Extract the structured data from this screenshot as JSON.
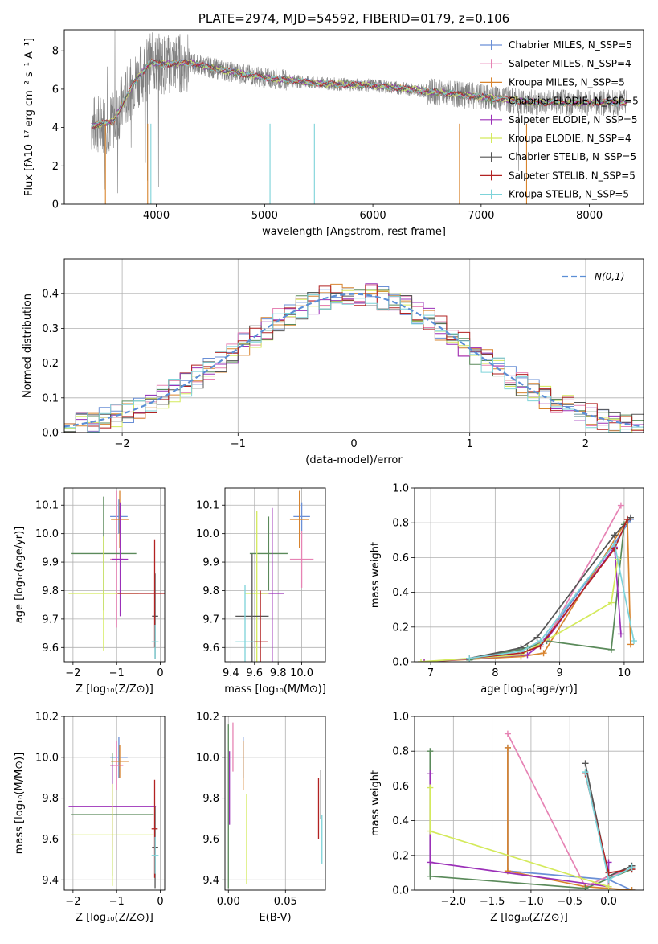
{
  "chart_data": [
    {
      "id": "spectrum",
      "type": "line",
      "title": "PLATE=2974, MJD=54592, FIBERID=0179, z=0.106",
      "xlabel": "wavelength [Angstrom, rest frame]",
      "ylabel": "Flux [fλ10⁻¹⁷ erg cm⁻² s⁻¹ A⁻¹]",
      "xlim": [
        3150,
        8500
      ],
      "ylim": [
        0,
        9.1
      ],
      "xticks": [
        4000,
        5000,
        6000,
        7000,
        8000
      ],
      "yticks": [
        0,
        2,
        4,
        6,
        8
      ],
      "legend_position": "top-right",
      "legend": [
        {
          "label": "Chabrier MILES, N_SSP=5",
          "color": "#6a8fd6"
        },
        {
          "label": "Salpeter MILES, N_SSP=4",
          "color": "#e683b4"
        },
        {
          "label": "Kroupa MILES, N_SSP=5",
          "color": "#d8842e"
        },
        {
          "label": "Chabrier ELODIE, N_SSP=5",
          "color": "#5a8a5a"
        },
        {
          "label": "Salpeter ELODIE, N_SSP=5",
          "color": "#9b30b8"
        },
        {
          "label": "Kroupa ELODIE, N_SSP=4",
          "color": "#d4ea5c"
        },
        {
          "label": "Chabrier STELIB, N_SSP=5",
          "color": "#555555"
        },
        {
          "label": "Salpeter STELIB, N_SSP=5",
          "color": "#b22222"
        },
        {
          "label": "Kroupa STELIB, N_SSP=5",
          "color": "#7dd3d9"
        }
      ],
      "data_trend": [
        {
          "x": 3400,
          "y": 4.1
        },
        {
          "x": 3600,
          "y": 4.3
        },
        {
          "x": 3800,
          "y": 6.4
        },
        {
          "x": 3950,
          "y": 7.4
        },
        {
          "x": 4100,
          "y": 7.3
        },
        {
          "x": 4300,
          "y": 7.4
        },
        {
          "x": 4600,
          "y": 7.0
        },
        {
          "x": 5000,
          "y": 6.6
        },
        {
          "x": 5500,
          "y": 6.3
        },
        {
          "x": 6000,
          "y": 6.2
        },
        {
          "x": 6500,
          "y": 5.9
        },
        {
          "x": 7000,
          "y": 5.6
        },
        {
          "x": 7500,
          "y": 5.3
        },
        {
          "x": 8000,
          "y": 5.3
        },
        {
          "x": 8350,
          "y": 5.3
        }
      ]
    },
    {
      "id": "residual-hist",
      "type": "line",
      "xlabel": "(data-model)/error",
      "ylabel": "Normed distribution",
      "xlim": [
        -2.5,
        2.5
      ],
      "ylim": [
        0,
        0.5
      ],
      "xticks": [
        -2,
        -1,
        0,
        1,
        2
      ],
      "xtick_labels": [
        "−2",
        "−1",
        "0",
        "1",
        "2"
      ],
      "yticks": [
        0.0,
        0.1,
        0.2,
        0.3,
        0.4
      ],
      "ytick_labels": [
        "0.0",
        "0.1",
        "0.2",
        "0.3",
        "0.4"
      ],
      "legend_position": "top-right",
      "legend": [
        {
          "label": "N(0,1)",
          "color": "#5b8ed6",
          "style": "dashed"
        }
      ],
      "grid": true
    },
    {
      "id": "age-vs-Z",
      "type": "scatter",
      "xlabel": "Z [log₁₀(Z/Z⊙)]",
      "ylabel": "age  [log₁₀(age/yr)]",
      "xlim": [
        -2.2,
        0.1
      ],
      "ylim": [
        9.55,
        10.16
      ],
      "xticks": [
        -2,
        -1,
        0
      ],
      "xtick_labels": [
        "−2",
        "−1",
        "0"
      ],
      "yticks": [
        9.6,
        9.7,
        9.8,
        9.9,
        10.0,
        10.1
      ],
      "ytick_labels": [
        "9.6",
        "9.7",
        "9.8",
        "9.9",
        "10.0",
        "10.1"
      ],
      "grid": true,
      "points": [
        {
          "model": "Chabrier MILES",
          "x": -0.95,
          "y": 10.06,
          "xerr": 0.2,
          "yerr": 0.06
        },
        {
          "model": "Salpeter MILES",
          "x": -1.0,
          "y": 9.91,
          "xerr": 0.15,
          "yerr": 0.24
        },
        {
          "model": "Kroupa MILES",
          "x": -0.93,
          "y": 10.05,
          "xerr": 0.2,
          "yerr": 0.1
        },
        {
          "model": "Chabrier ELODIE",
          "x": -1.3,
          "y": 9.93,
          "xerr": 0.75,
          "yerr": 0.2
        },
        {
          "model": "Salpeter ELODIE",
          "x": -0.92,
          "y": 9.91,
          "xerr": 0.18,
          "yerr": 0.2
        },
        {
          "model": "Kroupa ELODIE",
          "x": -1.3,
          "y": 9.79,
          "xerr": 0.8,
          "yerr": 0.2
        },
        {
          "model": "Chabrier STELIB",
          "x": -0.12,
          "y": 9.71,
          "xerr": 0.07,
          "yerr": 0.15
        },
        {
          "model": "Salpeter STELIB",
          "x": -0.13,
          "y": 9.79,
          "xerr": 0.85,
          "yerr": 0.19
        },
        {
          "model": "Kroupa STELIB",
          "x": -0.12,
          "y": 9.62,
          "xerr": 0.08,
          "yerr": 0.06
        }
      ]
    },
    {
      "id": "age-vs-mass",
      "type": "scatter",
      "xlabel": "mass [log₁₀(M/M⊙)]",
      "xlim": [
        9.35,
        10.2
      ],
      "ylim": [
        9.55,
        10.16
      ],
      "xticks": [
        9.4,
        9.6,
        9.8,
        10.0
      ],
      "xtick_labels": [
        "9.4",
        "9.6",
        "9.8",
        "10.0"
      ],
      "yticks": [
        9.6,
        9.7,
        9.8,
        9.9,
        10.0,
        10.1
      ],
      "ytick_labels": [
        "9.6",
        "9.7",
        "9.8",
        "9.9",
        "10.0",
        "10.1"
      ],
      "grid": true,
      "points": [
        {
          "model": "Chabrier MILES",
          "x": 10.0,
          "y": 10.06,
          "xerr": 0.07,
          "yerr": 0.05
        },
        {
          "model": "Salpeter MILES",
          "x": 10.0,
          "y": 9.91,
          "xerr": 0.1,
          "yerr": 0.1
        },
        {
          "model": "Kroupa MILES",
          "x": 9.98,
          "y": 10.05,
          "xerr": 0.08,
          "yerr": 0.1
        },
        {
          "model": "Chabrier ELODIE",
          "x": 9.72,
          "y": 9.93,
          "xerr": 0.16,
          "yerr": 0.13
        },
        {
          "model": "Salpeter ELODIE",
          "x": 9.75,
          "y": 9.79,
          "xerr": 0.1,
          "yerr": 0.3
        },
        {
          "model": "Kroupa ELODIE",
          "x": 9.62,
          "y": 9.79,
          "xerr": 0.1,
          "yerr": 0.29
        },
        {
          "model": "Chabrier STELIB",
          "x": 9.58,
          "y": 9.71,
          "xerr": 0.14,
          "yerr": 0.22
        },
        {
          "model": "Salpeter STELIB",
          "x": 9.65,
          "y": 9.62,
          "xerr": 0.06,
          "yerr": 0.18
        },
        {
          "model": "Kroupa STELIB",
          "x": 9.52,
          "y": 9.62,
          "xerr": 0.08,
          "yerr": 0.2
        }
      ]
    },
    {
      "id": "massweight-vs-age",
      "type": "line",
      "xlabel": "age  [log₁₀(age/yr)]",
      "ylabel": "mass weight",
      "xlim": [
        6.75,
        10.3
      ],
      "ylim": [
        0,
        1.0
      ],
      "xticks": [
        7,
        8,
        9,
        10
      ],
      "xtick_labels": [
        "7",
        "8",
        "9",
        "10"
      ],
      "yticks": [
        0.0,
        0.2,
        0.4,
        0.6,
        0.8,
        1.0
      ],
      "ytick_labels": [
        "0.0",
        "0.2",
        "0.4",
        "0.6",
        "0.8",
        "1.0"
      ],
      "grid": true,
      "series": [
        {
          "model": "Chabrier MILES",
          "x": [
            7.6,
            8.4,
            8.7,
            9.85,
            10.1
          ],
          "y": [
            0.02,
            0.07,
            0.1,
            0.68,
            0.82
          ]
        },
        {
          "model": "Salpeter MILES",
          "x": [
            7.6,
            8.5,
            8.8,
            9.95
          ],
          "y": [
            0.01,
            0.08,
            0.13,
            0.9
          ]
        },
        {
          "model": "Kroupa MILES",
          "x": [
            6.9,
            8.4,
            8.75,
            10.05,
            10.1
          ],
          "y": [
            0.0,
            0.03,
            0.05,
            0.82,
            0.1
          ]
        },
        {
          "model": "Chabrier ELODIE",
          "x": [
            7.6,
            8.5,
            8.8,
            9.8,
            10.0
          ],
          "y": [
            0.01,
            0.08,
            0.12,
            0.07,
            0.79
          ]
        },
        {
          "model": "Salpeter ELODIE",
          "x": [
            6.9,
            8.5,
            8.8,
            9.85,
            9.95
          ],
          "y": [
            0.0,
            0.04,
            0.13,
            0.66,
            0.16
          ]
        },
        {
          "model": "Kroupa ELODIE",
          "x": [
            6.85,
            8.4,
            9.8,
            9.9
          ],
          "y": [
            0.0,
            0.04,
            0.34,
            0.59
          ]
        },
        {
          "model": "Chabrier STELIB",
          "x": [
            7.6,
            8.4,
            8.65,
            9.85,
            10.1
          ],
          "y": [
            0.02,
            0.08,
            0.14,
            0.73,
            0.83
          ]
        },
        {
          "model": "Salpeter STELIB",
          "x": [
            7.6,
            8.4,
            8.7,
            9.85,
            10.05
          ],
          "y": [
            0.02,
            0.05,
            0.09,
            0.65,
            0.82
          ]
        },
        {
          "model": "Kroupa STELIB",
          "x": [
            7.6,
            8.4,
            8.7,
            9.85,
            10.15
          ],
          "y": [
            0.02,
            0.06,
            0.12,
            0.68,
            0.12
          ]
        }
      ]
    },
    {
      "id": "mass-vs-Z",
      "type": "scatter",
      "xlabel": "Z [log₁₀(Z/Z⊙)]",
      "ylabel": "mass [log₁₀(M/M⊙)]",
      "xlim": [
        -2.2,
        0.1
      ],
      "ylim": [
        9.35,
        10.2
      ],
      "xticks": [
        -2,
        -1,
        0
      ],
      "xtick_labels": [
        "−2",
        "−1",
        "0"
      ],
      "yticks": [
        9.4,
        9.6,
        9.8,
        10.0,
        10.2
      ],
      "ytick_labels": [
        "9.4",
        "9.6",
        "9.8",
        "10.0",
        "10.2"
      ],
      "grid": true,
      "points": [
        {
          "model": "Chabrier MILES",
          "x": -0.95,
          "y": 10.0,
          "xerr": 0.2,
          "yerr": 0.1
        },
        {
          "model": "Salpeter MILES",
          "x": -1.0,
          "y": 9.96,
          "xerr": 0.15,
          "yerr": 0.12
        },
        {
          "model": "Kroupa MILES",
          "x": -0.93,
          "y": 9.98,
          "xerr": 0.2,
          "yerr": 0.08
        },
        {
          "model": "Chabrier ELODIE",
          "x": -1.1,
          "y": 9.72,
          "xerr": 0.95,
          "yerr": 0.3
        },
        {
          "model": "Salpeter ELODIE",
          "x": -1.1,
          "y": 9.76,
          "xerr": 1.0,
          "yerr": 0.2
        },
        {
          "model": "Kroupa ELODIE",
          "x": -1.1,
          "y": 9.62,
          "xerr": 0.95,
          "yerr": 0.25
        },
        {
          "model": "Chabrier STELIB",
          "x": -0.12,
          "y": 9.56,
          "xerr": 0.07,
          "yerr": 0.2
        },
        {
          "model": "Salpeter STELIB",
          "x": -0.13,
          "y": 9.65,
          "xerr": 0.07,
          "yerr": 0.24
        },
        {
          "model": "Kroupa STELIB",
          "x": -0.12,
          "y": 9.52,
          "xerr": 0.08,
          "yerr": 0.09
        }
      ]
    },
    {
      "id": "mass-vs-ebv",
      "type": "scatter",
      "xlabel": "E(B-V)",
      "xlim": [
        -0.003,
        0.085
      ],
      "ylim": [
        9.35,
        10.2
      ],
      "xticks": [
        0.0,
        0.05
      ],
      "xtick_labels": [
        "0.00",
        "0.05"
      ],
      "yticks": [
        9.4,
        9.6,
        9.8,
        10.0,
        10.2
      ],
      "ytick_labels": [
        "9.4",
        "9.6",
        "9.8",
        "10.0",
        "10.2"
      ],
      "grid": true,
      "points": [
        {
          "model": "Chabrier MILES",
          "x": 0.013,
          "y": 10.0,
          "yerr": 0.1
        },
        {
          "model": "Salpeter MILES",
          "x": 0.004,
          "y": 10.05,
          "yerr": 0.12
        },
        {
          "model": "Kroupa MILES",
          "x": 0.013,
          "y": 9.96,
          "yerr": 0.12
        },
        {
          "model": "Chabrier ELODIE",
          "x": 0.0,
          "y": 9.76,
          "yerr": 0.4
        },
        {
          "model": "Salpeter ELODIE",
          "x": 0.001,
          "y": 9.85,
          "yerr": 0.18
        },
        {
          "model": "Kroupa ELODIE",
          "x": 0.016,
          "y": 9.6,
          "yerr": 0.22
        },
        {
          "model": "Chabrier STELIB",
          "x": 0.081,
          "y": 9.82,
          "yerr": 0.12
        },
        {
          "model": "Salpeter STELIB",
          "x": 0.079,
          "y": 9.75,
          "yerr": 0.15
        },
        {
          "model": "Kroupa STELIB",
          "x": 0.082,
          "y": 9.6,
          "yerr": 0.12
        }
      ]
    },
    {
      "id": "massweight-vs-Z",
      "type": "line",
      "xlabel": "Z [log₁₀(Z/Z⊙)]",
      "ylabel": "mass weight",
      "xlim": [
        -2.5,
        0.45
      ],
      "ylim": [
        0,
        1.0
      ],
      "xticks": [
        -2.0,
        -1.5,
        -1.0,
        -0.5,
        0.0
      ],
      "xtick_labels": [
        "−2.0",
        "−1.5",
        "−1.0",
        "−0.5",
        "0.0"
      ],
      "yticks": [
        0.0,
        0.2,
        0.4,
        0.6,
        0.8,
        1.0
      ],
      "ytick_labels": [
        "0.0",
        "0.2",
        "0.4",
        "0.6",
        "0.8",
        "1.0"
      ],
      "grid": true,
      "series": [
        {
          "model": "Chabrier MILES",
          "x": [
            -1.3,
            -1.3,
            0.0,
            0.3
          ],
          "y": [
            0.82,
            0.11,
            0.06,
            0.0
          ]
        },
        {
          "model": "Salpeter MILES",
          "x": [
            -1.3,
            -0.3,
            0.0,
            0.3
          ],
          "y": [
            0.9,
            0.02,
            0.08,
            0.12
          ]
        },
        {
          "model": "Kroupa MILES",
          "x": [
            -1.3,
            -1.3,
            -0.3,
            0.3
          ],
          "y": [
            0.82,
            0.11,
            0.02,
            0.0
          ]
        },
        {
          "model": "Chabrier ELODIE",
          "x": [
            -2.3,
            -2.3,
            -0.3,
            0.3
          ],
          "y": [
            0.8,
            0.08,
            0.01,
            0.12
          ]
        },
        {
          "model": "Salpeter ELODIE",
          "x": [
            -2.3,
            -2.3,
            0.0,
            0.0
          ],
          "y": [
            0.67,
            0.16,
            0.02,
            0.16
          ]
        },
        {
          "model": "Kroupa ELODIE",
          "x": [
            -2.3,
            -2.3,
            0.0
          ],
          "y": [
            0.59,
            0.34,
            0.02
          ]
        },
        {
          "model": "Chabrier STELIB",
          "x": [
            -0.3,
            0.0,
            0.3
          ],
          "y": [
            0.73,
            0.08,
            0.14
          ]
        },
        {
          "model": "Salpeter STELIB",
          "x": [
            -0.3,
            0.0,
            0.3
          ],
          "y": [
            0.67,
            0.1,
            0.12
          ]
        },
        {
          "model": "Kroupa STELIB",
          "x": [
            -0.3,
            0.0,
            0.3
          ],
          "y": [
            0.68,
            0.06,
            0.13
          ]
        }
      ]
    }
  ]
}
